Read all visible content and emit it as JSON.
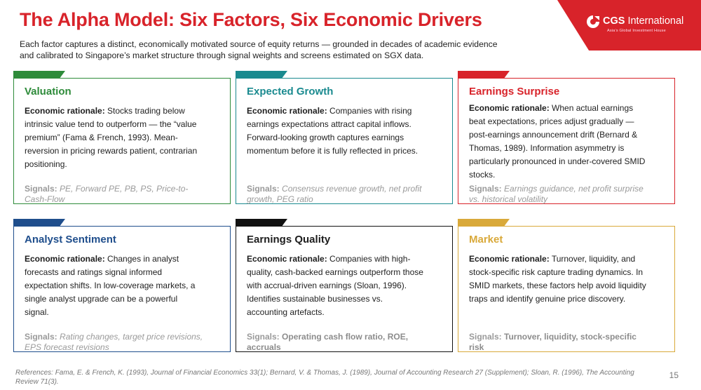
{
  "header": {
    "title": "The Alpha Model: Six Factors, Six Economic Drivers",
    "subtitle": "Each factor captures a distinct, economically motivated source of equity returns — grounded in decades of academic evidence and calibrated to Singapore’s market structure through signal weights and screens estimated on SGX data."
  },
  "logo": {
    "name_bold": "CGS",
    "name_rest": " International",
    "tagline": "Asia’s Global Investment House",
    "color": "#d8232a"
  },
  "rationale_label": "Economic rationale:",
  "signals_label": "Signals:",
  "cards": [
    {
      "title": "Valuation",
      "accent": "#2e8b3a",
      "rationale": "Stocks trading below intrinsic value tend to outperform — the “value premium” (Fama & French, 1993). Mean-reversion in pricing rewards patient, contrarian positioning.",
      "signals": "PE, Forward PE, PB, PS, Price-to-Cash-Flow"
    },
    {
      "title": "Expected Growth",
      "accent": "#1a8a8f",
      "rationale": "Companies with rising earnings expectations attract capital inflows. Forward-looking growth captures earnings momentum before it is fully reflected in prices.",
      "signals": "Consensus revenue growth, net profit growth, PEG ratio"
    },
    {
      "title": "Earnings Surprise",
      "accent": "#d8232a",
      "rationale": "When actual earnings beat expectations, prices adjust gradually — post-earnings announcement drift (Bernard & Thomas, 1989). Information asymmetry is particularly pronounced in under-covered SMID stocks.",
      "signals": "Earnings guidance, net profit surprise vs. historical volatility"
    },
    {
      "title": "Analyst Sentiment",
      "accent": "#1f4e8c",
      "rationale": "Changes in analyst forecasts and ratings signal informed expectation shifts. In low-coverage markets, a single analyst upgrade can be a powerful signal.",
      "signals": "Rating changes, target price revisions, EPS forecast revisions"
    },
    {
      "title": "Earnings Quality",
      "accent": "#111111",
      "rationale": "Companies with high-quality, cash-backed earnings outperform those with accrual-driven earnings (Sloan, 1996). Identifies sustainable businesses vs. accounting artefacts.",
      "signals": "Operating cash flow ratio, ROE, accruals"
    },
    {
      "title": "Market",
      "accent": "#d9a93a",
      "rationale": "Turnover, liquidity, and stock-specific risk capture trading dynamics. In SMID markets, these factors help avoid liquidity traps and identify genuine price discovery.",
      "signals": "Turnover, liquidity, stock-specific risk"
    }
  ],
  "footer": {
    "references": "References: Fama, E. & French, K. (1993), Journal of Financial Economics 33(1); Bernard, V. & Thomas, J. (1989), Journal of Accounting Research 27 (Supplement); Sloan, R. (1996), The Accounting Review 71(3).",
    "page_number": "15"
  }
}
